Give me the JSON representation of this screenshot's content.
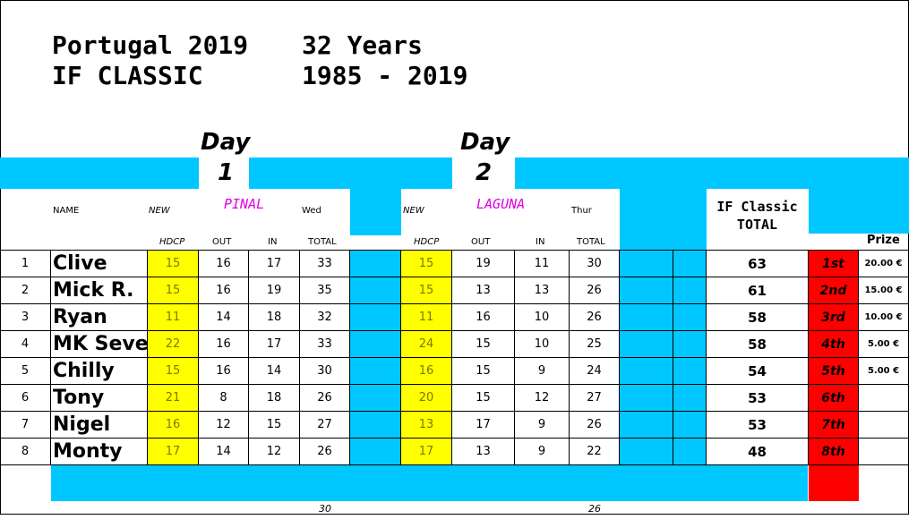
{
  "header": {
    "line1_left": "Portugal 2019",
    "line1_right": "32 Years",
    "line2_left": "IF CLASSIC",
    "line2_right": "1985 - 2019"
  },
  "day1": {
    "day": "Day",
    "num": "1",
    "course": "PINAL",
    "weekday": "Wed"
  },
  "day2": {
    "day": "Day",
    "num": "2",
    "course": "LAGUNA",
    "weekday": "Thur"
  },
  "labels": {
    "name": "NAME",
    "new": "NEW",
    "hdcp": "HDCP",
    "out": "OUT",
    "in": "IN",
    "total": "TOTAL",
    "if_total_1": "IF Classic",
    "if_total_2": "TOTAL",
    "prize": "Prize"
  },
  "rows": [
    {
      "pos": "1",
      "name": "Clive",
      "h1": "15",
      "o1": "16",
      "i1": "17",
      "t1": "33",
      "h2": "15",
      "o2": "19",
      "i2": "11",
      "t2": "30",
      "total": "63",
      "place": "1st",
      "prize": "20.00 €"
    },
    {
      "pos": "2",
      "name": "Mick R.",
      "h1": "15",
      "o1": "16",
      "i1": "19",
      "t1": "35",
      "h2": "15",
      "o2": "13",
      "i2": "13",
      "t2": "26",
      "total": "61",
      "place": "2nd",
      "prize": "15.00 €"
    },
    {
      "pos": "3",
      "name": "Ryan",
      "h1": "11",
      "o1": "14",
      "i1": "18",
      "t1": "32",
      "h2": "11",
      "o2": "16",
      "i2": "10",
      "t2": "26",
      "total": "58",
      "place": "3rd",
      "prize": "10.00 €"
    },
    {
      "pos": "4",
      "name": "MK Seve",
      "h1": "22",
      "o1": "16",
      "i1": "17",
      "t1": "33",
      "h2": "24",
      "o2": "15",
      "i2": "10",
      "t2": "25",
      "total": "58",
      "place": "4th",
      "prize": "5.00 €"
    },
    {
      "pos": "5",
      "name": "Chilly",
      "h1": "15",
      "o1": "16",
      "i1": "14",
      "t1": "30",
      "h2": "16",
      "o2": "15",
      "i2": "9",
      "t2": "24",
      "total": "54",
      "place": "5th",
      "prize": "5.00 €"
    },
    {
      "pos": "6",
      "name": "Tony",
      "h1": "21",
      "o1": "8",
      "i1": "18",
      "t1": "26",
      "h2": "20",
      "o2": "15",
      "i2": "12",
      "t2": "27",
      "total": "53",
      "place": "6th",
      "prize": ""
    },
    {
      "pos": "7",
      "name": "Nigel",
      "h1": "16",
      "o1": "12",
      "i1": "15",
      "t1": "27",
      "h2": "13",
      "o2": "17",
      "i2": "9",
      "t2": "26",
      "total": "53",
      "place": "7th",
      "prize": ""
    },
    {
      "pos": "8",
      "name": "Monty",
      "h1": "17",
      "o1": "14",
      "i1": "12",
      "t1": "26",
      "h2": "17",
      "o2": "13",
      "i2": "9",
      "t2": "22",
      "total": "48",
      "place": "8th",
      "prize": ""
    }
  ],
  "footer": {
    "day1_best": "30",
    "day2_best": "26"
  },
  "colors": {
    "accent": "#00c7ff",
    "handicap": "#ffff00",
    "place": "#ff0000",
    "course": "#e000e0"
  }
}
